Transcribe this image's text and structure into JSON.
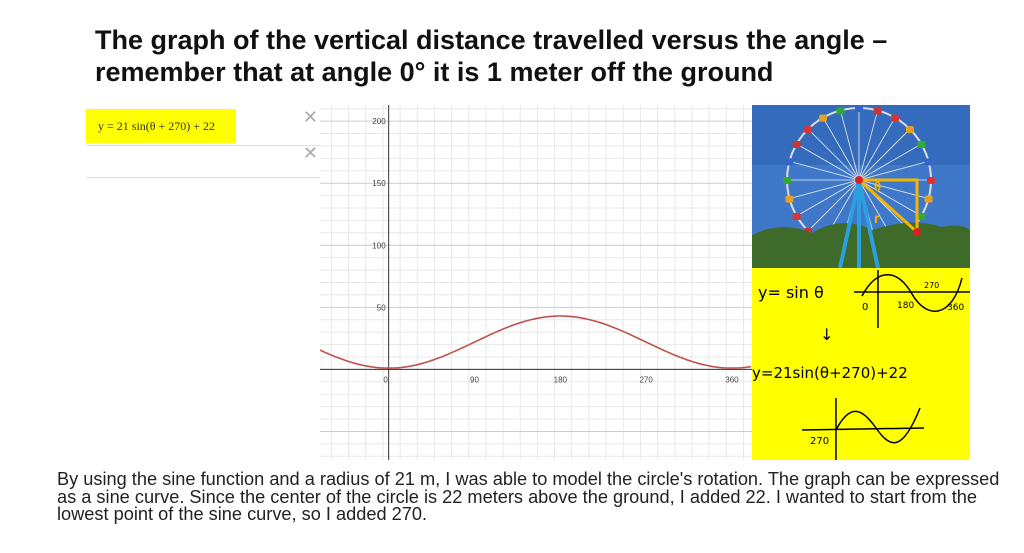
{
  "title": "The graph of the vertical distance travelled versus the angle – remember that at angle 0° it is 1 meter off the ground",
  "equation_panel": {
    "equation": "y = 21 sin(θ + 270) + 22",
    "delete_icon": "close-icon",
    "highlight_color": "#ffff00"
  },
  "chart_data": {
    "type": "line",
    "function": "y = 21 sin(θ + 270) + 22",
    "x_ticks": [
      "0",
      "90",
      "180",
      "270",
      "360"
    ],
    "y_ticks": [
      "50",
      "100",
      "150",
      "200"
    ],
    "xlim": [
      -72,
      381
    ],
    "ylim": [
      -73,
      213
    ],
    "grid": true,
    "series_color": "#c0504d"
  },
  "note": {
    "line1": "y= sin θ",
    "line1_ticks": [
      "0",
      "180",
      "270",
      "360"
    ],
    "arrow": "↓",
    "line2": "y=21sin(θ+270)+22",
    "line3_tick": "270",
    "background": "#ffff00"
  },
  "photo": {
    "labels": [
      "θ",
      "r"
    ]
  },
  "paragraph": "By using the sine function and a radius of 21 m, I was able to model the circle's rotation. The graph can be expressed as a sine curve. Since the center of the circle is 22 meters above the ground, I added 22. I wanted to start from the lowest point of the sine curve, so I added 270."
}
